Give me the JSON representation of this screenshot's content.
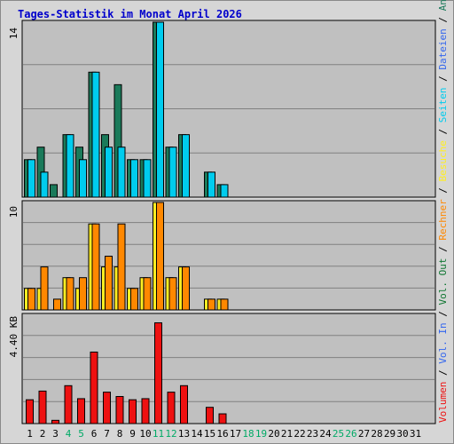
{
  "title": "Tages-Statistik im Monat April 2026",
  "chart_data": [
    {
      "type": "bar",
      "panel": "top",
      "ytick": "14",
      "ylim": [
        0,
        14
      ],
      "grid": true,
      "categories": [
        "1",
        "2",
        "3",
        "4",
        "5",
        "6",
        "7",
        "8",
        "9",
        "10",
        "11",
        "12",
        "13",
        "14",
        "15",
        "16",
        "17",
        "18",
        "19",
        "20",
        "21",
        "22",
        "23",
        "24",
        "25",
        "26",
        "27",
        "28",
        "29",
        "30",
        "31"
      ],
      "weekend_days": [
        "4",
        "5",
        "11",
        "12",
        "18",
        "19",
        "25",
        "26"
      ],
      "series": [
        {
          "name": "Anfragen",
          "color": "#1a7a5a",
          "values": [
            3,
            4,
            1,
            5,
            4,
            10,
            5,
            9,
            3,
            3,
            14,
            4,
            5,
            0,
            2,
            1,
            0,
            0,
            0,
            0,
            0,
            0,
            0,
            0,
            0,
            0,
            0,
            0,
            0,
            0,
            0
          ]
        },
        {
          "name": "Dateien",
          "color": "#3366ee",
          "values": [
            3,
            2,
            0,
            5,
            3,
            10,
            4,
            4,
            3,
            3,
            14,
            4,
            5,
            0,
            2,
            1,
            0,
            0,
            0,
            0,
            0,
            0,
            0,
            0,
            0,
            0,
            0,
            0,
            0,
            0,
            0
          ]
        },
        {
          "name": "Seiten",
          "color": "#00ccee",
          "values": [
            3,
            2,
            0,
            5,
            3,
            10,
            4,
            4,
            3,
            3,
            14,
            4,
            5,
            0,
            2,
            1,
            0,
            0,
            0,
            0,
            0,
            0,
            0,
            0,
            0,
            0,
            0,
            0,
            0,
            0,
            0
          ]
        }
      ]
    },
    {
      "type": "bar",
      "panel": "middle",
      "ytick": "10",
      "ylim": [
        0,
        10
      ],
      "grid": true,
      "series": [
        {
          "name": "Besuche",
          "color": "#ffee22",
          "values": [
            2,
            2,
            0,
            3,
            2,
            8,
            4,
            4,
            2,
            3,
            10,
            3,
            4,
            0,
            1,
            1,
            0,
            0,
            0,
            0,
            0,
            0,
            0,
            0,
            0,
            0,
            0,
            0,
            0,
            0,
            0
          ]
        },
        {
          "name": "Rechner",
          "color": "#ff8800",
          "values": [
            2,
            4,
            1,
            3,
            3,
            8,
            5,
            8,
            2,
            3,
            10,
            3,
            4,
            0,
            1,
            1,
            0,
            0,
            0,
            0,
            0,
            0,
            0,
            0,
            0,
            0,
            0,
            0,
            0,
            0,
            0
          ]
        }
      ]
    },
    {
      "type": "bar",
      "panel": "bottom",
      "ytick": "4.40 KB",
      "ylim": [
        0,
        5.0
      ],
      "grid": true,
      "series": [
        {
          "name": "Vol. Out",
          "color": "#117733",
          "values": [
            0,
            0,
            0,
            0,
            0,
            0,
            0,
            0,
            0,
            0,
            0,
            0,
            0,
            0,
            0,
            0,
            0,
            0,
            0,
            0,
            0,
            0,
            0,
            0,
            0,
            0,
            0,
            0,
            0,
            0,
            0
          ]
        },
        {
          "name": "Vol. In",
          "color": "#3366ee",
          "values": [
            0,
            0,
            0,
            0,
            0,
            0,
            0,
            0,
            0,
            0,
            0,
            0,
            0,
            0,
            0,
            0,
            0,
            0,
            0,
            0,
            0,
            0,
            0,
            0,
            0,
            0,
            0,
            0,
            0,
            0,
            0
          ]
        },
        {
          "name": "Volumen",
          "color": "#ee1111",
          "values": [
            1.1,
            1.5,
            0.15,
            1.75,
            1.15,
            3.3,
            1.45,
            1.25,
            1.1,
            1.15,
            4.65,
            1.45,
            1.75,
            0,
            0.75,
            0.45,
            0,
            0,
            0,
            0,
            0,
            0,
            0,
            0,
            0,
            0,
            0,
            0,
            0,
            0,
            0
          ]
        }
      ]
    }
  ],
  "legend": [
    {
      "text": "Volumen",
      "color": "#ee1111"
    },
    {
      "text": "/",
      "color": "#000000"
    },
    {
      "text": "Vol. In",
      "color": "#3366ee"
    },
    {
      "text": "/",
      "color": "#000000"
    },
    {
      "text": "Vol. Out",
      "color": "#117733"
    },
    {
      "text": "/",
      "color": "#000000"
    },
    {
      "text": "Rechner",
      "color": "#ff8800"
    },
    {
      "text": "/",
      "color": "#000000"
    },
    {
      "text": "Besuche",
      "color": "#ffee22"
    },
    {
      "text": "/",
      "color": "#000000"
    },
    {
      "text": "Seiten",
      "color": "#00ccee"
    },
    {
      "text": "/",
      "color": "#000000"
    },
    {
      "text": "Dateien",
      "color": "#3366ee"
    },
    {
      "text": "/",
      "color": "#000000"
    },
    {
      "text": "Anfragen",
      "color": "#1a7a5a"
    }
  ],
  "colors": {
    "plot_bg": "#c0c0c0",
    "frame_bg": "#d6d6d6",
    "grid": "#808080",
    "weekend_label": "#00aa66",
    "weekday_label": "#000000",
    "title": "#0000cc"
  }
}
